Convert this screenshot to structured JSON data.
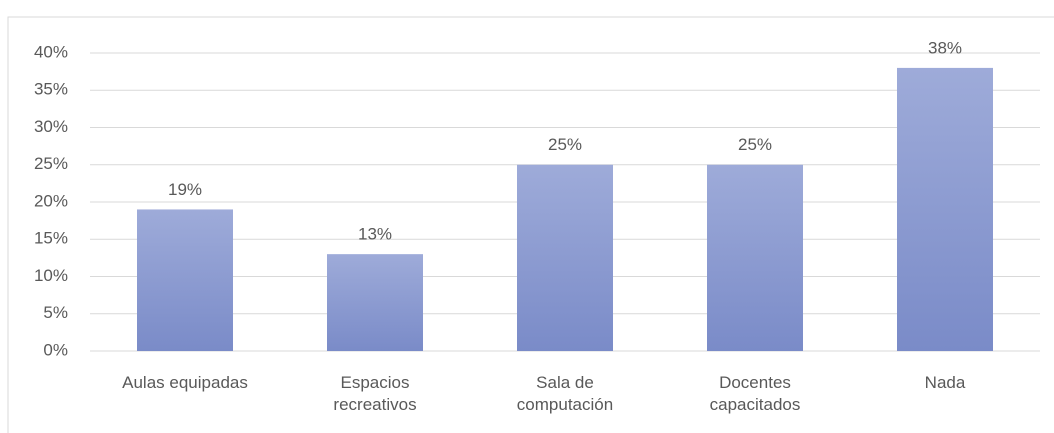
{
  "chart_data": {
    "type": "bar",
    "categories": [
      "Aulas equipadas",
      "Espacios\nrecreativos",
      "Sala de\ncomputación",
      "Docentes\ncapacitados",
      "Nada"
    ],
    "values": [
      19,
      13,
      25,
      25,
      38
    ],
    "value_labels": [
      "19%",
      "13%",
      "25%",
      "25%",
      "38%"
    ],
    "color": "#8f9fd6",
    "ylim": [
      0,
      40
    ],
    "yticks": [
      {
        "value": 0,
        "label": "0%"
      },
      {
        "value": 5,
        "label": "5%"
      },
      {
        "value": 10,
        "label": "10%"
      },
      {
        "value": 15,
        "label": "15%"
      },
      {
        "value": 20,
        "label": "20%"
      },
      {
        "value": 25,
        "label": "25%"
      },
      {
        "value": 30,
        "label": "30%"
      },
      {
        "value": 35,
        "label": "35%"
      },
      {
        "value": 40,
        "label": "40%"
      }
    ],
    "grid": true
  }
}
